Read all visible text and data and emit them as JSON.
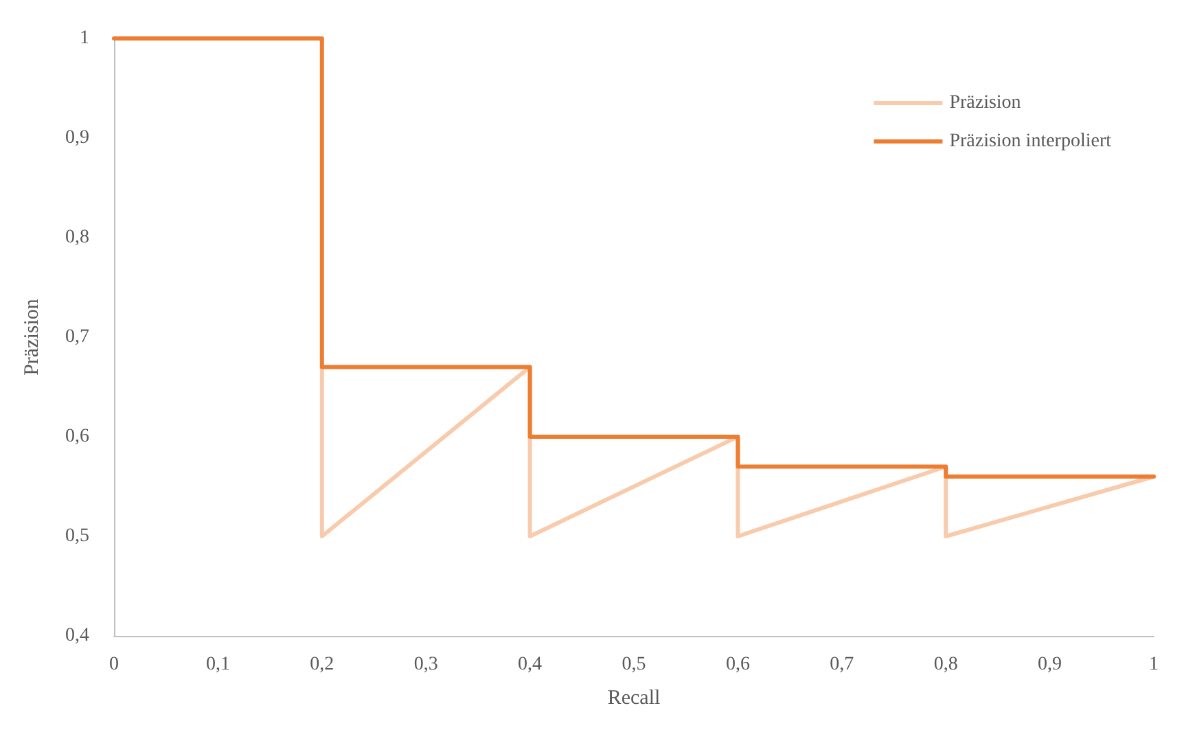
{
  "chart_data": {
    "type": "line",
    "xlabel": "Recall",
    "ylabel": "Präzision",
    "legend": "top right",
    "grid": false,
    "marker": "none",
    "line_style": "solid",
    "xlim": [
      0,
      1
    ],
    "xticks": [
      0,
      {
        "value": 0.1,
        "label": "0,1"
      },
      {
        "value": 0.2,
        "label": "0,2"
      },
      {
        "value": 0.3,
        "label": "0,3"
      },
      {
        "value": 0.4,
        "label": "0,4"
      },
      {
        "value": 0.5,
        "label": "0,5"
      },
      {
        "value": 0.6,
        "label": "0,6"
      },
      {
        "value": 0.7,
        "label": "0,7"
      },
      {
        "value": 0.8,
        "label": "0,8"
      },
      {
        "value": 0.9,
        "label": "0,9"
      },
      1
    ],
    "ylim": [
      0.4,
      1
    ],
    "yticks": [
      {
        "value": 0.4,
        "label": "0,4"
      },
      {
        "value": 0.5,
        "label": "0,5"
      },
      {
        "value": 0.6,
        "label": "0,6"
      },
      {
        "value": 0.7,
        "label": "0,7"
      },
      {
        "value": 0.8,
        "label": "0,8"
      },
      {
        "value": 0.9,
        "label": "0,9"
      },
      1
    ],
    "series": [
      {
        "name": "Präzision",
        "color": "#f8cbad",
        "x": [
          0.2,
          0.2,
          0.4,
          0.4,
          0.6,
          0.6,
          0.8,
          0.8,
          1
        ],
        "values": [
          0.67,
          0.5,
          0.67,
          0.5,
          0.6,
          0.5,
          0.57,
          0.5,
          0.56
        ]
      },
      {
        "name": "Präzision interpoliert",
        "color": "#ed7d31",
        "x": [
          0,
          0.2,
          0.2,
          0.4,
          0.4,
          0.6,
          0.6,
          0.8,
          0.8,
          1
        ],
        "values": [
          1,
          1,
          0.67,
          0.67,
          0.6,
          0.6,
          0.57,
          0.57,
          0.56,
          0.56
        ]
      }
    ]
  }
}
